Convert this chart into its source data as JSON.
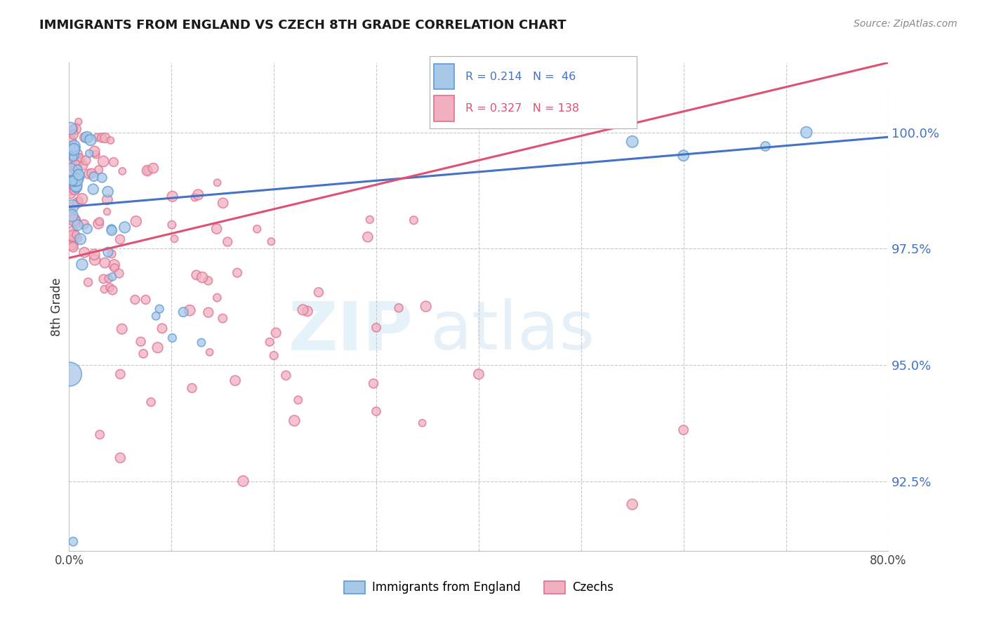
{
  "title": "IMMIGRANTS FROM ENGLAND VS CZECH 8TH GRADE CORRELATION CHART",
  "source": "Source: ZipAtlas.com",
  "ylabel": "8th Grade",
  "xlim": [
    0.0,
    80.0
  ],
  "ylim": [
    91.0,
    101.5
  ],
  "yticks": [
    92.5,
    95.0,
    97.5,
    100.0
  ],
  "blue_color": "#a8c8e8",
  "blue_edge": "#5b9bd5",
  "pink_color": "#f0b0c0",
  "pink_edge": "#e07090",
  "trendline_blue": "#4472c4",
  "trendline_pink": "#e05070",
  "blue_trend": [
    98.4,
    99.9
  ],
  "pink_trend": [
    97.3,
    101.5
  ],
  "watermark_zip": "ZIP",
  "watermark_atlas": "atlas"
}
